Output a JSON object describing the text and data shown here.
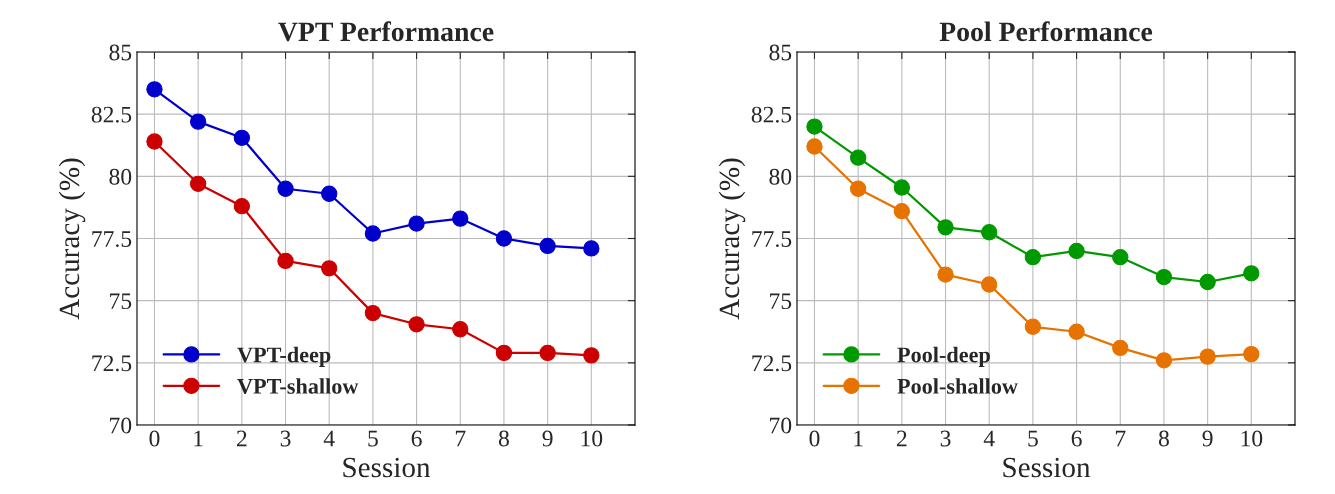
{
  "chart_data": [
    {
      "type": "line",
      "title": "VPT Performance",
      "xlabel": "Session",
      "ylabel": "Accuracy (%)",
      "x": [
        0,
        1,
        2,
        3,
        4,
        5,
        6,
        7,
        8,
        9,
        10
      ],
      "xlim": [
        -0.4,
        11
      ],
      "xticks": [
        0,
        1,
        2,
        3,
        4,
        5,
        6,
        7,
        8,
        9,
        10
      ],
      "ylim": [
        70,
        85
      ],
      "yticks": [
        70,
        72.5,
        75,
        77.5,
        80,
        82.5,
        85
      ],
      "grid": true,
      "legend": "bottom left",
      "marker": "circle",
      "line_style": "solid",
      "series": [
        {
          "name": "VPT-deep",
          "color": "#0000cc",
          "values": [
            83.5,
            82.2,
            81.55,
            79.5,
            79.3,
            77.7,
            78.1,
            78.3,
            77.5,
            77.2,
            77.1
          ]
        },
        {
          "name": "VPT-shallow",
          "color": "#cc0000",
          "values": [
            81.4,
            79.7,
            78.8,
            76.6,
            76.3,
            74.5,
            74.05,
            73.85,
            72.9,
            72.9,
            72.8
          ]
        }
      ]
    },
    {
      "type": "line",
      "title": "Pool Performance",
      "xlabel": "Session",
      "ylabel": "Accuracy (%)",
      "x": [
        0,
        1,
        2,
        3,
        4,
        5,
        6,
        7,
        8,
        9,
        10
      ],
      "xlim": [
        -0.4,
        11
      ],
      "xticks": [
        0,
        1,
        2,
        3,
        4,
        5,
        6,
        7,
        8,
        9,
        10
      ],
      "ylim": [
        70,
        85
      ],
      "yticks": [
        70,
        72.5,
        75,
        77.5,
        80,
        82.5,
        85
      ],
      "grid": true,
      "legend": "bottom left",
      "marker": "circle",
      "line_style": "solid",
      "series": [
        {
          "name": "Pool-deep",
          "color": "#009900",
          "values": [
            82.0,
            80.75,
            79.55,
            77.95,
            77.75,
            76.75,
            77.0,
            76.75,
            75.95,
            75.75,
            76.1
          ]
        },
        {
          "name": "Pool-shallow",
          "color": "#e67300",
          "values": [
            81.2,
            79.5,
            78.6,
            76.05,
            75.65,
            73.95,
            73.75,
            73.1,
            72.6,
            72.75,
            72.85
          ]
        }
      ]
    }
  ]
}
